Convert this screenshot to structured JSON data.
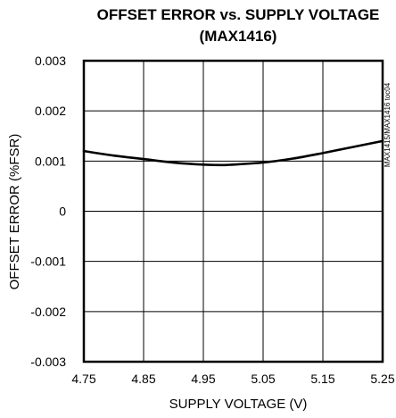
{
  "chart_data": {
    "type": "line",
    "title_line1": "OFFSET ERROR vs. SUPPLY VOLTAGE",
    "title_line2": "(MAX1416)",
    "xlabel": "SUPPLY VOLTAGE (V)",
    "ylabel": "OFFSET ERROR (%FSR)",
    "side_note": "MAX1415/MAX1416 toc04",
    "xlim": [
      4.75,
      5.25
    ],
    "ylim": [
      -0.003,
      0.003
    ],
    "x_ticks": [
      "4.75",
      "4.85",
      "4.95",
      "5.05",
      "5.15",
      "5.25"
    ],
    "y_ticks": [
      "0.003",
      "0.002",
      "0.001",
      "0",
      "-0.001",
      "-0.002",
      "-0.003"
    ],
    "grid": true,
    "series": [
      {
        "x": [
          4.75,
          4.8,
          4.85,
          4.9,
          4.95,
          4.98,
          5.0,
          5.05,
          5.1,
          5.15,
          5.2,
          5.25
        ],
        "y": [
          0.0012,
          0.00111,
          0.00104,
          0.00097,
          0.00093,
          0.00092,
          0.00093,
          0.00097,
          0.00105,
          0.00116,
          0.00128,
          0.0014
        ]
      }
    ]
  }
}
